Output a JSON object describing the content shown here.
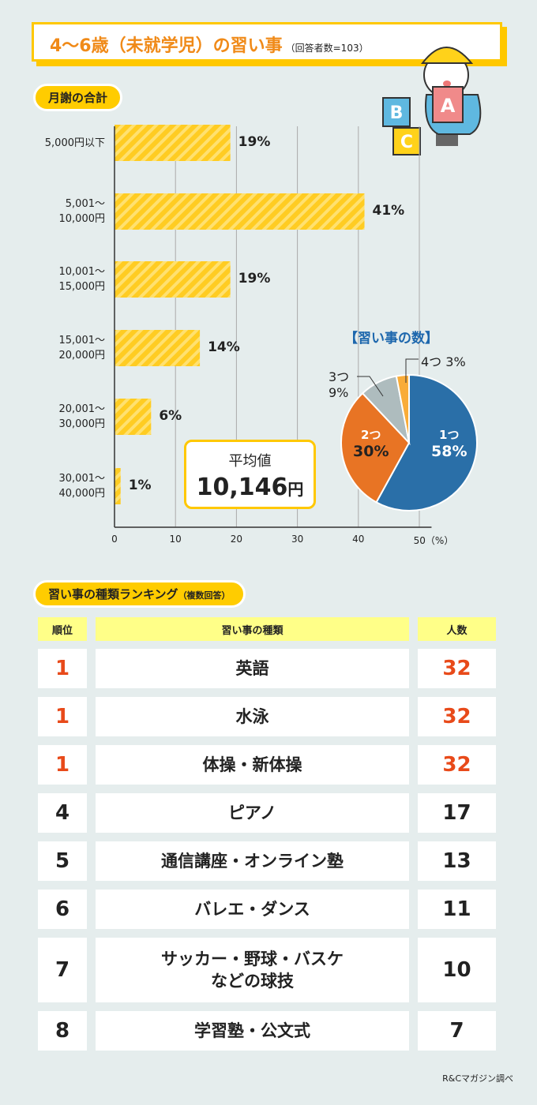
{
  "title": {
    "main": "4～6歳（未就学児）の習い事",
    "sub": "（回答者数=103）"
  },
  "section1": "月謝の合計",
  "chart_data": [
    {
      "type": "bar",
      "orientation": "horizontal",
      "title": "月謝の合計",
      "categories": [
        "5,000円以下",
        "5,001～ 10,000円",
        "10,001～ 15,000円",
        "15,001～ 20,000円",
        "20,001～ 30,000円",
        "30,001～ 40,000円"
      ],
      "category_lines": [
        [
          "5,000円以下"
        ],
        [
          "5,001～",
          "10,000円"
        ],
        [
          "10,001～",
          "15,000円"
        ],
        [
          "15,001～",
          "20,000円"
        ],
        [
          "20,001～",
          "30,000円"
        ],
        [
          "30,001～",
          "40,000円"
        ]
      ],
      "values": [
        19,
        41,
        19,
        14,
        6,
        1
      ],
      "labels": [
        "19%",
        "41%",
        "19%",
        "14%",
        "6%",
        "1%"
      ],
      "xlim": [
        0,
        50
      ],
      "xticks": [
        "0",
        "10",
        "20",
        "30",
        "40",
        "50（%）"
      ],
      "unit": "%",
      "grid": true,
      "color": "#ffcc22"
    },
    {
      "type": "pie",
      "title": "【習い事の数】",
      "categories": [
        "1つ",
        "2つ",
        "3つ",
        "4つ"
      ],
      "values": [
        58,
        30,
        9,
        3
      ],
      "labels": [
        "58%",
        "30%",
        "9%",
        "3%"
      ],
      "colors": [
        "#2a6fa8",
        "#e87424",
        "#aebcbe",
        "#f9ac38"
      ]
    }
  ],
  "average": {
    "label": "平均値",
    "value": "10,146",
    "unit": "円"
  },
  "section2": {
    "main": "習い事の種類ランキング",
    "sub": "（複数回答）"
  },
  "table": {
    "headers": [
      "順位",
      "習い事の種類",
      "人数"
    ],
    "rows": [
      {
        "rank": "1",
        "name": "英語",
        "count": "32",
        "top": true
      },
      {
        "rank": "1",
        "name": "水泳",
        "count": "32",
        "top": true
      },
      {
        "rank": "1",
        "name": "体操・新体操",
        "count": "32",
        "top": true
      },
      {
        "rank": "4",
        "name": "ピアノ",
        "count": "17",
        "top": false
      },
      {
        "rank": "5",
        "name": "通信講座・オンライン塾",
        "count": "13",
        "top": false
      },
      {
        "rank": "6",
        "name": "バレエ・ダンス",
        "count": "11",
        "top": false
      },
      {
        "rank": "7",
        "name": "サッカー・野球・バスケ\nなどの球技",
        "count": "10",
        "top": false
      },
      {
        "rank": "8",
        "name": "学習塾・公文式",
        "count": "7",
        "top": false
      }
    ]
  },
  "illustration": {
    "blocks": [
      "B",
      "A",
      "C"
    ]
  },
  "credit": "R&Cマガジン調べ"
}
